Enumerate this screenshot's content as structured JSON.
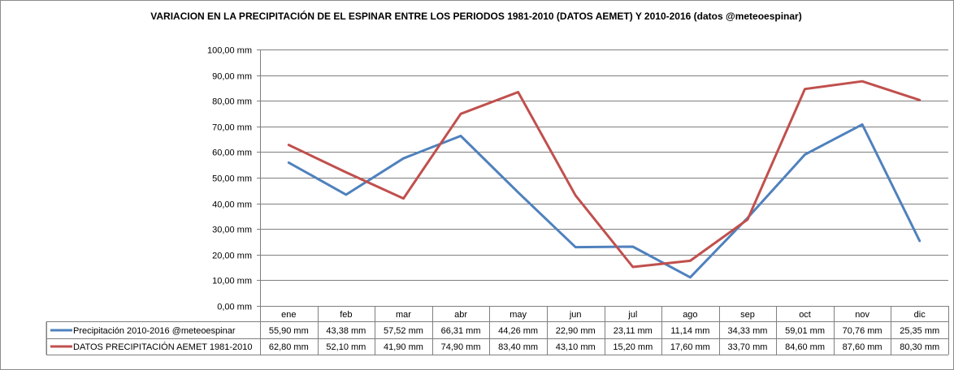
{
  "chart_data": {
    "type": "line",
    "title": "VARIACION EN LA PRECIPITACIÓN DE EL ESPINAR  ENTRE LOS PERIODOS 1981-2010 (DATOS AEMET)  Y 2010-2016 (datos @meteoespinar)",
    "categories": [
      "ene",
      "feb",
      "mar",
      "abr",
      "may",
      "jun",
      "jul",
      "ago",
      "sep",
      "oct",
      "nov",
      "dic"
    ],
    "ylim": [
      0,
      100
    ],
    "yticks": [
      "0,00 mm",
      "10,00 mm",
      "20,00 mm",
      "30,00 mm",
      "40,00 mm",
      "50,00 mm",
      "60,00 mm",
      "70,00 mm",
      "80,00 mm",
      "90,00 mm",
      "100,00 mm"
    ],
    "grid": true,
    "legend": "data-table",
    "series": [
      {
        "name": "Precipitación 2010-2016 @meteoespinar",
        "color": "#4f81bd",
        "values": [
          55.9,
          43.38,
          57.52,
          66.31,
          44.26,
          22.9,
          23.11,
          11.14,
          34.33,
          59.01,
          70.76,
          25.35
        ],
        "labels": [
          "55,90 mm",
          "43,38 mm",
          "57,52 mm",
          "66,31 mm",
          "44,26 mm",
          "22,90 mm",
          "23,11 mm",
          "11,14 mm",
          "34,33 mm",
          "59,01 mm",
          "70,76 mm",
          "25,35 mm"
        ]
      },
      {
        "name": "DATOS PRECIPITACIÓN  AEMET 1981-2010",
        "color": "#c0504d",
        "values": [
          62.8,
          52.1,
          41.9,
          74.9,
          83.4,
          43.1,
          15.2,
          17.6,
          33.7,
          84.6,
          87.6,
          80.3
        ],
        "labels": [
          "62,80 mm",
          "52,10 mm",
          "41,90 mm",
          "74,90 mm",
          "83,40 mm",
          "43,10 mm",
          "15,20 mm",
          "17,60 mm",
          "33,70 mm",
          "84,60 mm",
          "87,60 mm",
          "80,30 mm"
        ]
      }
    ]
  }
}
